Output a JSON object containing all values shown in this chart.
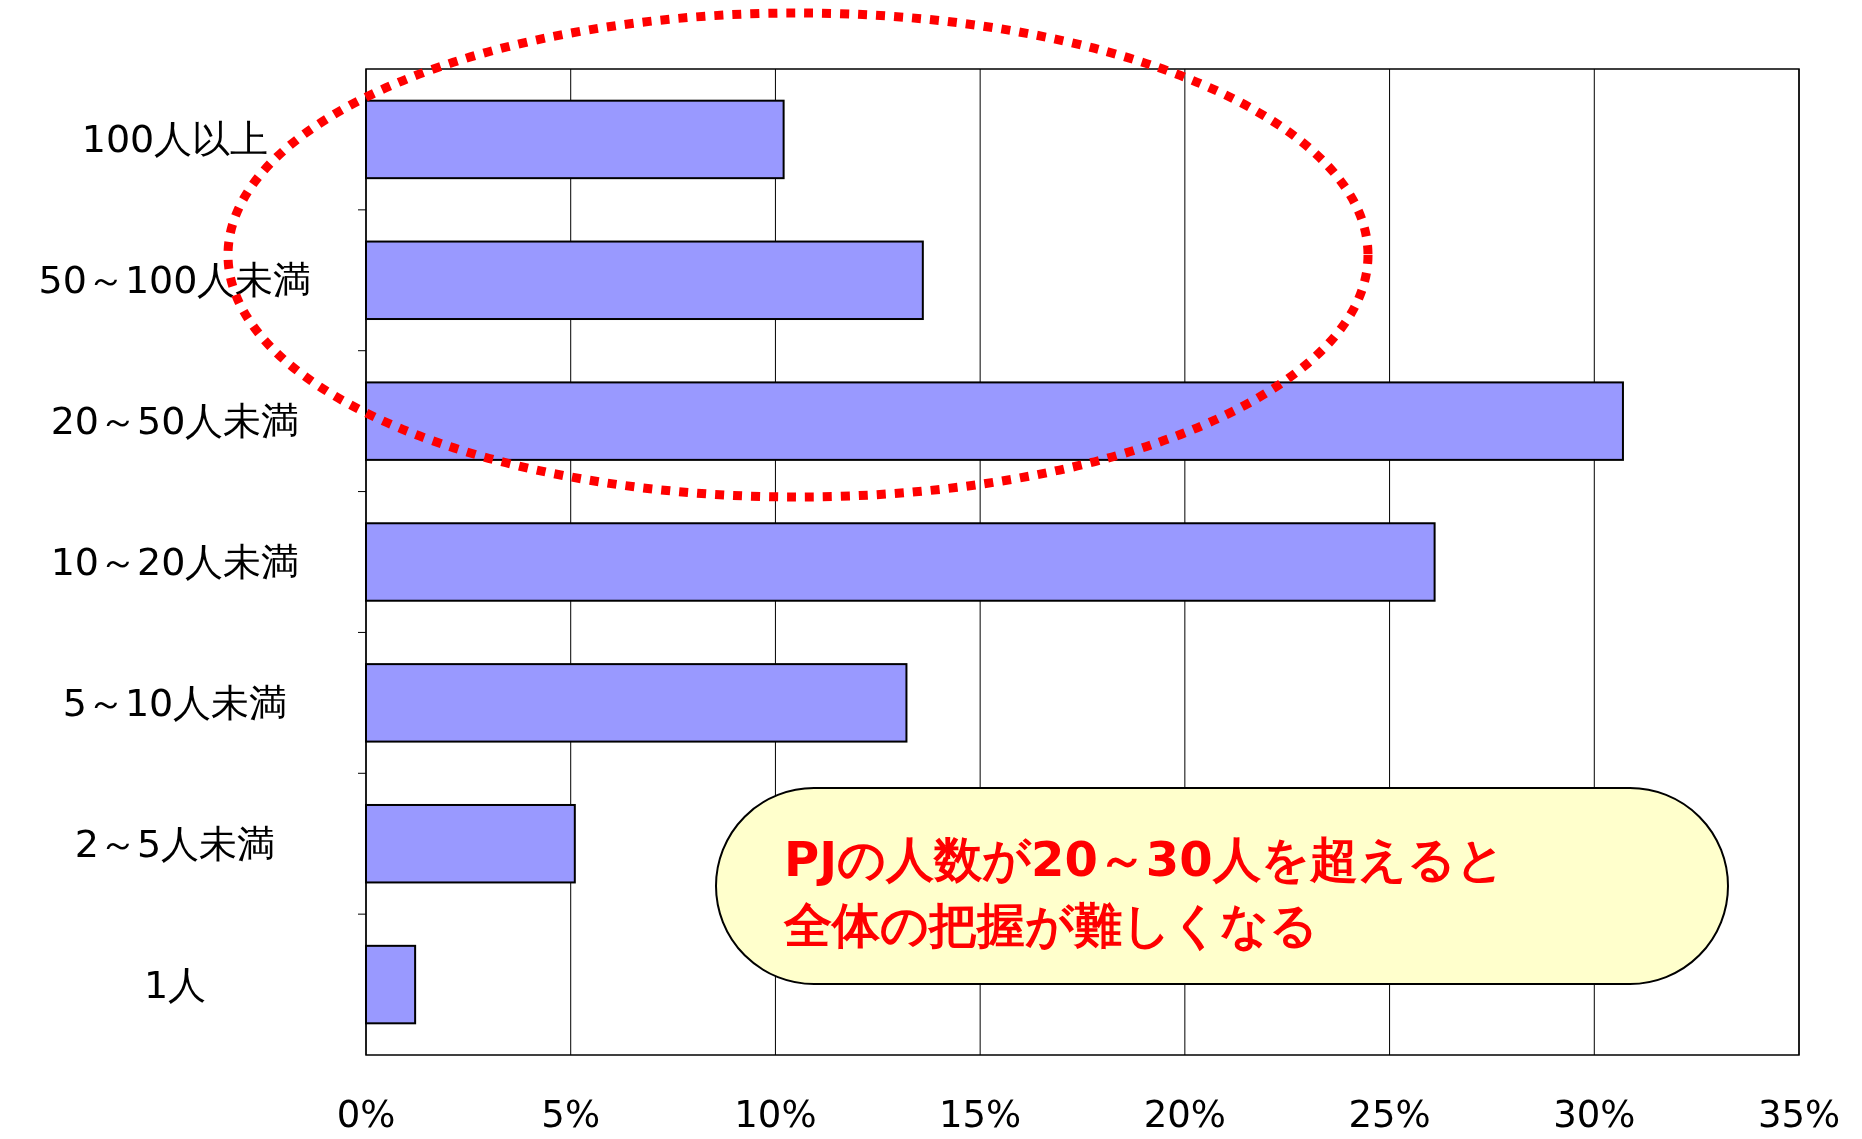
{
  "chart_data": {
    "type": "bar",
    "orientation": "horizontal",
    "categories": [
      "100人以上",
      "50～100人未満",
      "20～50人未満",
      "10～20人未満",
      "5～10人未満",
      "2～5人未満",
      "1人"
    ],
    "values": [
      10.2,
      13.6,
      30.7,
      26.1,
      13.2,
      5.1,
      1.2
    ],
    "color": "#9999ff",
    "xlim": [
      0,
      35
    ],
    "xticks": [
      {
        "value": 0,
        "label": "0%"
      },
      {
        "value": 5,
        "label": "5%"
      },
      {
        "value": 10,
        "label": "10%"
      },
      {
        "value": 15,
        "label": "15%"
      },
      {
        "value": 20,
        "label": "20%"
      },
      {
        "value": 25,
        "label": "25%"
      },
      {
        "value": 30,
        "label": "30%"
      },
      {
        "value": 35,
        "label": "35%"
      }
    ],
    "grid": "x",
    "annotations": [
      "PJの人数が20～30人を超えると全体の把握が難しくなる"
    ]
  }
}
